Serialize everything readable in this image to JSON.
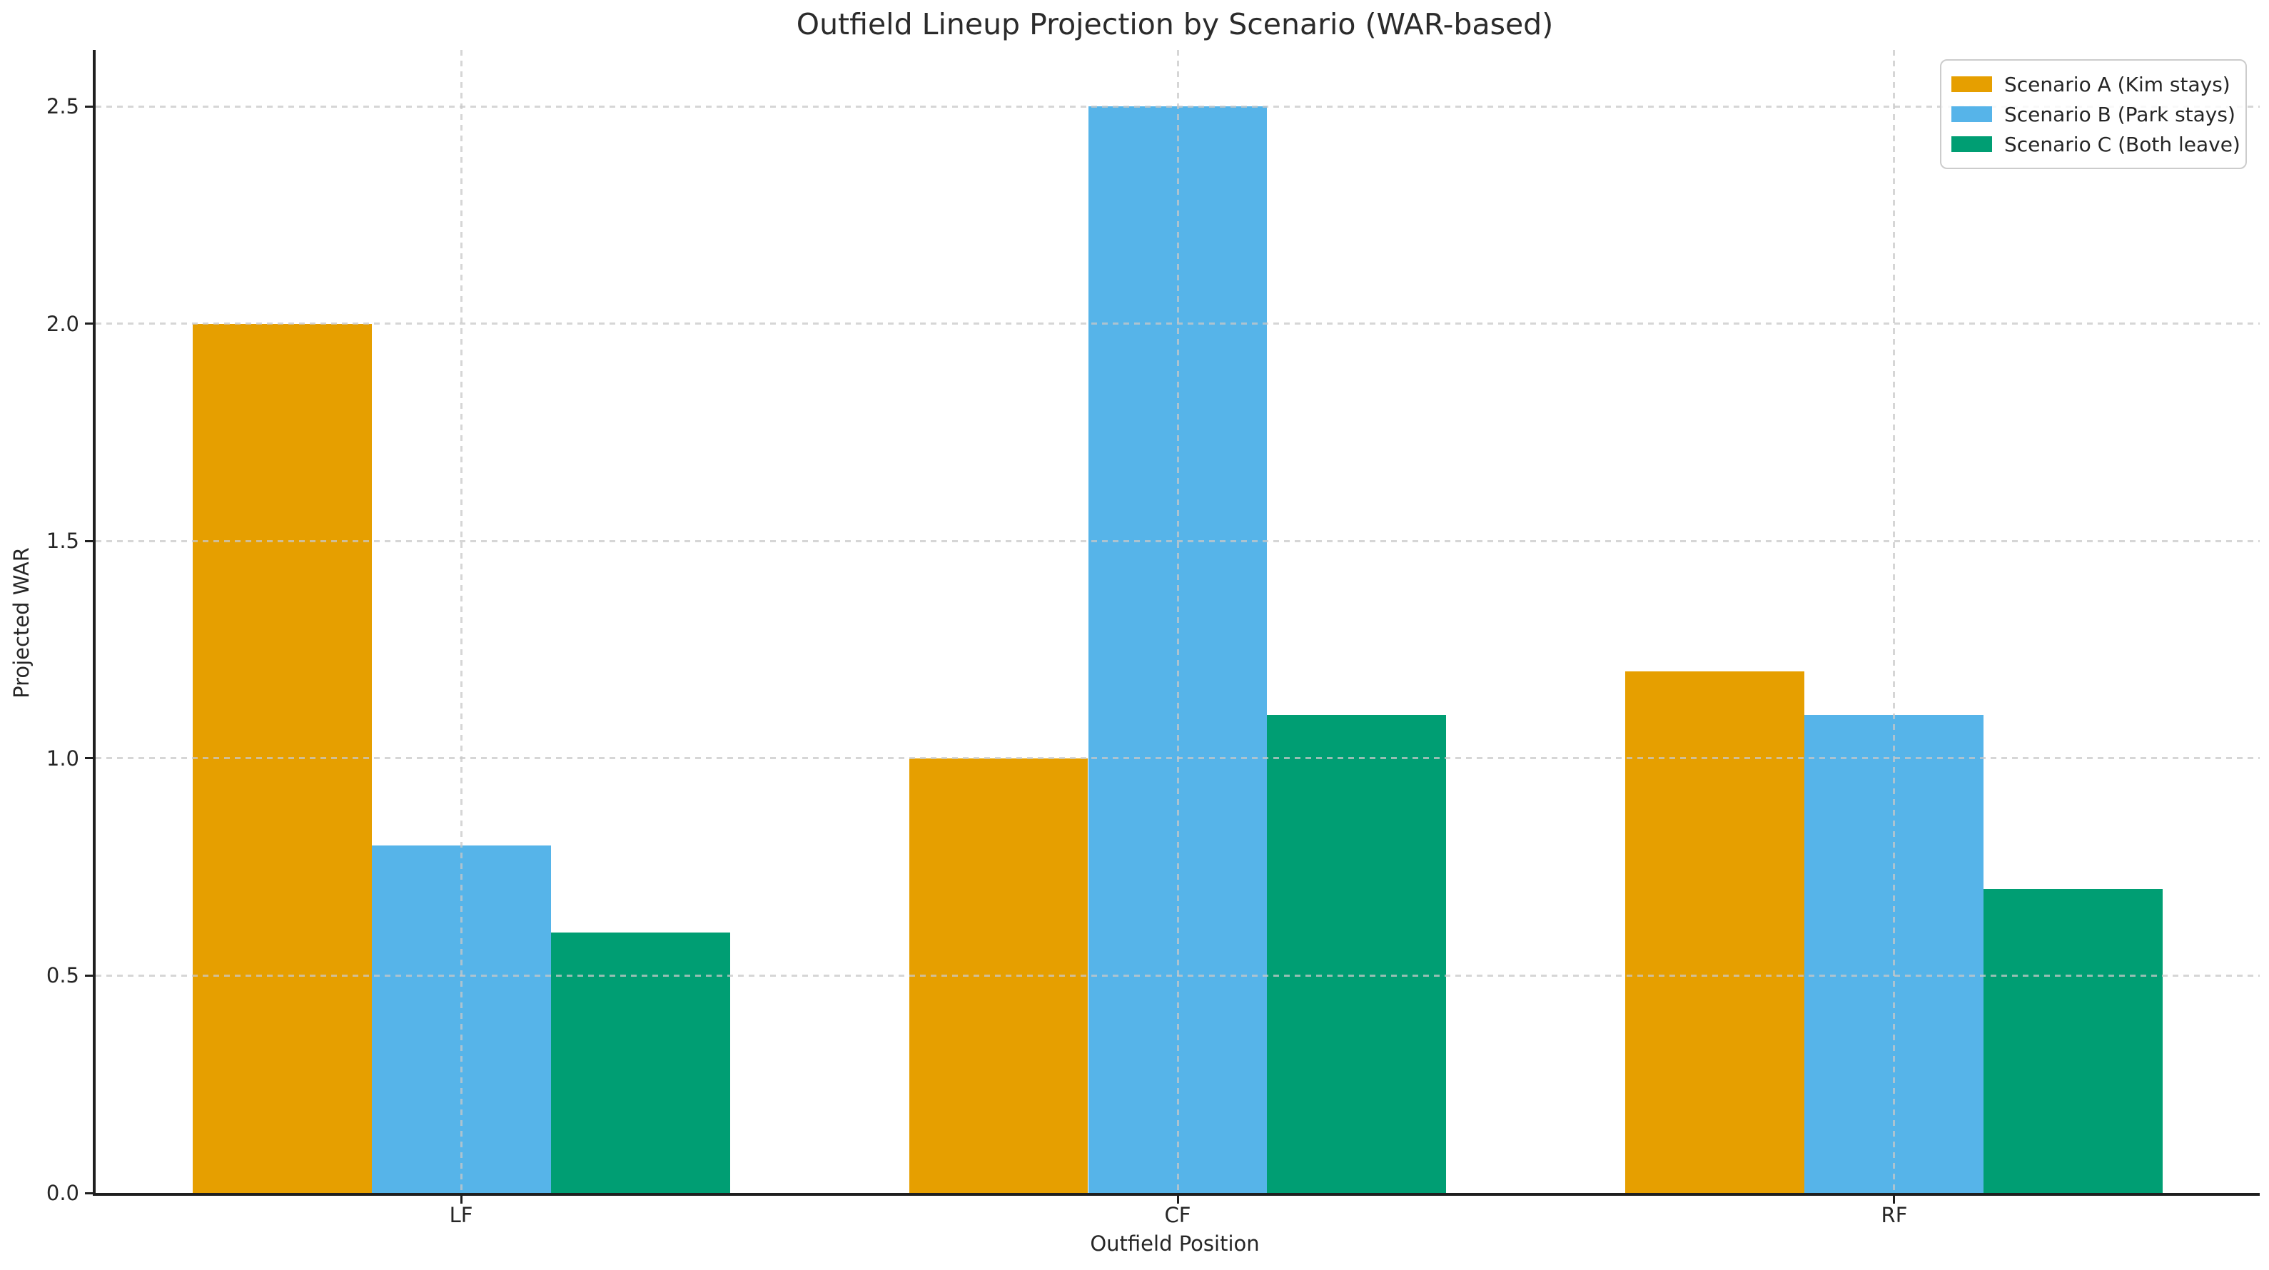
{
  "chart_data": {
    "type": "bar",
    "title": "Outfield Lineup Projection by Scenario (WAR-based)",
    "xlabel": "Outfield Position",
    "ylabel": "Projected WAR",
    "categories": [
      "LF",
      "CF",
      "RF"
    ],
    "series": [
      {
        "name": "Scenario A (Kim stays)",
        "color": "#E69F00",
        "values": [
          2.0,
          1.0,
          1.2
        ]
      },
      {
        "name": "Scenario B (Park stays)",
        "color": "#56B4E9",
        "values": [
          0.8,
          2.5,
          1.1
        ]
      },
      {
        "name": "Scenario C (Both leave)",
        "color": "#009E73",
        "values": [
          0.6,
          1.1,
          0.7
        ]
      }
    ],
    "ylim": [
      0,
      2.63
    ],
    "yticks": {
      "values": [
        0,
        0.5,
        1.0,
        1.5,
        2.0,
        2.5
      ],
      "labels": [
        "0.0",
        "0.5",
        "1.0",
        "1.5",
        "2.0",
        "2.5"
      ]
    },
    "grid": true,
    "grid_style": "dashed",
    "legend_position": "upper right",
    "colors": {
      "grid": "#cccccc",
      "spine": "#1f1f1f",
      "text": "#262626",
      "background": "#ffffff"
    }
  }
}
